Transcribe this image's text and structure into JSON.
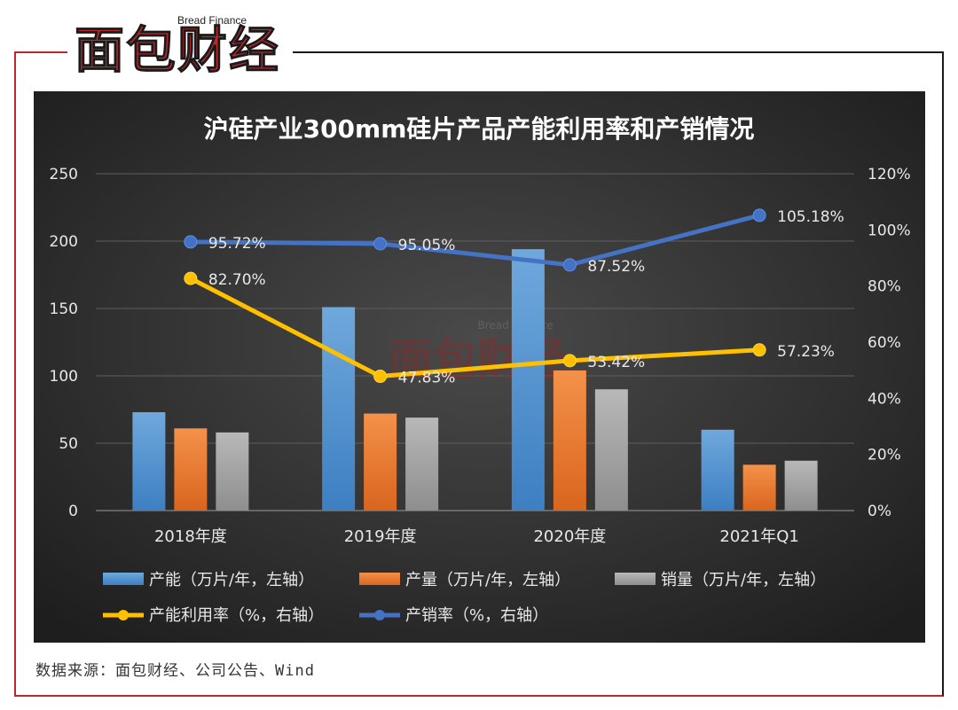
{
  "logo": {
    "en": "Bread Finance",
    "cn": "面包财经"
  },
  "source": "数据来源：面包财经、公司公告、Wind",
  "watermark": {
    "en": "Bread Finance",
    "cn": "面包财经"
  },
  "chart_data": {
    "type": "bar",
    "title": "沪硅产业300mm硅片产品产能利用率和产销情况",
    "categories": [
      "2018年度",
      "2019年度",
      "2020年度",
      "2021年Q1"
    ],
    "left_axis": {
      "range": [
        0,
        250
      ],
      "ticks": [
        "0",
        "50",
        "100",
        "150",
        "200",
        "250"
      ]
    },
    "right_axis": {
      "range": [
        0,
        120
      ],
      "ticks": [
        "0%",
        "20%",
        "40%",
        "60%",
        "80%",
        "100%",
        "120%"
      ]
    },
    "bar_series": [
      {
        "name": "产能（万片/年，左轴）",
        "color": "#5b9bd5",
        "values": [
          73,
          151,
          194,
          60
        ]
      },
      {
        "name": "产量（万片/年，左轴）",
        "color": "#ed7d31",
        "values": [
          61,
          72,
          104,
          34
        ]
      },
      {
        "name": "销量（万片/年，左轴）",
        "color": "#a5a5a5",
        "values": [
          58,
          69,
          90,
          37
        ]
      }
    ],
    "line_series": [
      {
        "name": "产能利用率（%，右轴）",
        "color": "#ffc000",
        "values": [
          82.7,
          47.83,
          53.42,
          57.23
        ],
        "labels": [
          "82.70%",
          "47.83%",
          "53.42%",
          "57.23%"
        ]
      },
      {
        "name": "产销率（%，右轴）",
        "color": "#4472c4",
        "values": [
          95.72,
          95.05,
          87.52,
          105.18
        ],
        "labels": [
          "95.72%",
          "95.05%",
          "87.52%",
          "105.18%"
        ]
      }
    ],
    "grid": true,
    "legend_position": "bottom"
  }
}
